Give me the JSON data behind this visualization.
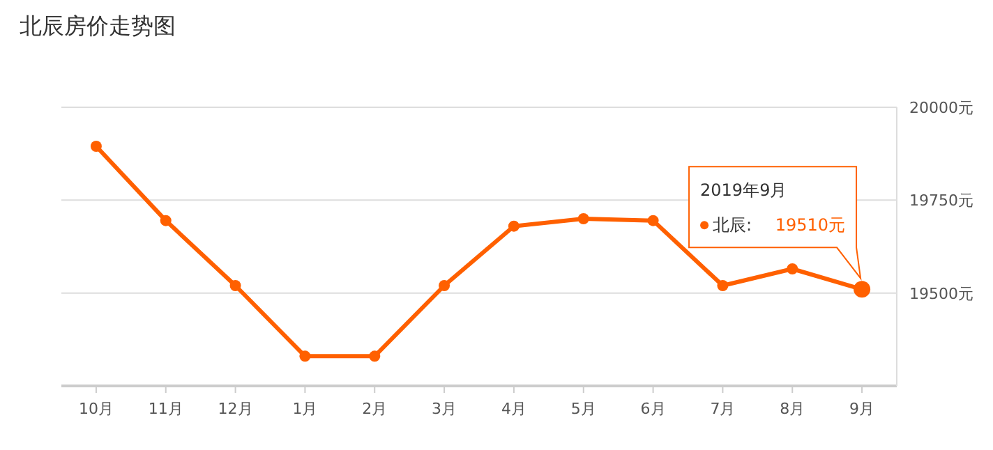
{
  "chart_data": {
    "type": "line",
    "title": "北辰房价走势图",
    "categories": [
      "10月",
      "11月",
      "12月",
      "1月",
      "2月",
      "3月",
      "4月",
      "5月",
      "6月",
      "7月",
      "8月",
      "9月"
    ],
    "series": [
      {
        "name": "北辰:",
        "color": "#ff6000",
        "values": [
          19895,
          19695,
          19520,
          19330,
          19330,
          19520,
          19680,
          19700,
          19695,
          19520,
          19565,
          19510
        ],
        "value_labels": [
          null,
          null,
          null,
          null,
          null,
          null,
          null,
          null,
          null,
          null,
          null,
          "19510元"
        ]
      }
    ],
    "ylim": [
      19250,
      20000
    ],
    "yticks": [
      {
        "value": 19250,
        "label": null
      },
      {
        "value": 19500,
        "label": "19500元"
      },
      {
        "value": 19750,
        "label": "19750元"
      },
      {
        "value": 20000,
        "label": "20000元"
      }
    ],
    "grid": "y",
    "marker": "circle",
    "line_style": "solid",
    "annotations": [
      "2019年9月"
    ]
  }
}
